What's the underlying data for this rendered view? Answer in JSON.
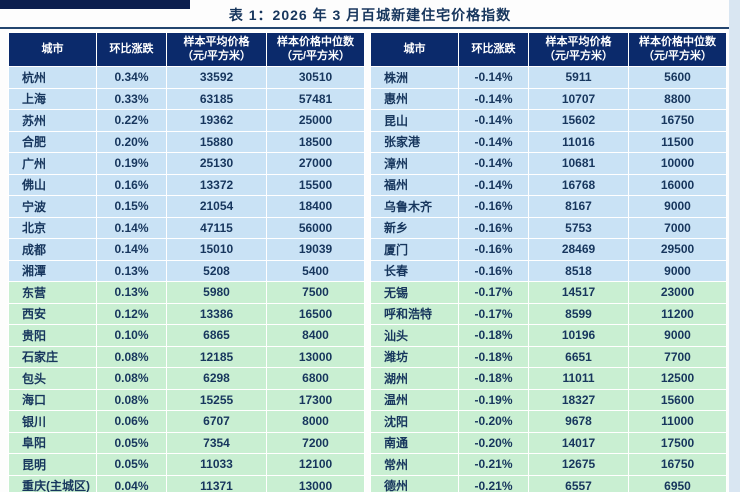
{
  "title": "表 1：2026 年 3 月百城新建住宅价格指数",
  "headers": [
    {
      "line1": "城市",
      "line2": ""
    },
    {
      "line1": "环比涨跌",
      "line2": ""
    },
    {
      "line1": "样本平均价格",
      "line2": "（元/平方米）"
    },
    {
      "line1": "样本价格中位数",
      "line2": "（元/平方米）"
    }
  ],
  "tables": [
    {
      "id": "left",
      "rows": [
        [
          "杭州",
          "0.34%",
          "33592",
          "30510"
        ],
        [
          "上海",
          "0.33%",
          "63185",
          "57481"
        ],
        [
          "苏州",
          "0.22%",
          "19362",
          "25000"
        ],
        [
          "合肥",
          "0.20%",
          "15880",
          "18500"
        ],
        [
          "广州",
          "0.19%",
          "25130",
          "27000"
        ],
        [
          "佛山",
          "0.16%",
          "13372",
          "15500"
        ],
        [
          "宁波",
          "0.15%",
          "21054",
          "18400"
        ],
        [
          "北京",
          "0.14%",
          "47115",
          "56000"
        ],
        [
          "成都",
          "0.14%",
          "15010",
          "19039"
        ],
        [
          "湘潭",
          "0.13%",
          "5208",
          "5400"
        ],
        [
          "东营",
          "0.13%",
          "5980",
          "7500"
        ],
        [
          "西安",
          "0.12%",
          "13386",
          "16500"
        ],
        [
          "贵阳",
          "0.10%",
          "6865",
          "8400"
        ],
        [
          "石家庄",
          "0.08%",
          "12185",
          "13000"
        ],
        [
          "包头",
          "0.08%",
          "6298",
          "6800"
        ],
        [
          "海口",
          "0.08%",
          "15255",
          "17300"
        ],
        [
          "银川",
          "0.06%",
          "6707",
          "8000"
        ],
        [
          "阜阳",
          "0.05%",
          "7354",
          "7200"
        ],
        [
          "昆明",
          "0.05%",
          "11033",
          "12100"
        ],
        [
          "重庆(主城区)",
          "0.04%",
          "11371",
          "13000"
        ]
      ]
    },
    {
      "id": "right",
      "rows": [
        [
          "株洲",
          "-0.14%",
          "5911",
          "5600"
        ],
        [
          "惠州",
          "-0.14%",
          "10707",
          "8800"
        ],
        [
          "昆山",
          "-0.14%",
          "15602",
          "16750"
        ],
        [
          "张家港",
          "-0.14%",
          "11016",
          "11500"
        ],
        [
          "漳州",
          "-0.14%",
          "10681",
          "10000"
        ],
        [
          "福州",
          "-0.14%",
          "16768",
          "16000"
        ],
        [
          "乌鲁木齐",
          "-0.16%",
          "8167",
          "9000"
        ],
        [
          "新乡",
          "-0.16%",
          "5753",
          "7000"
        ],
        [
          "厦门",
          "-0.16%",
          "28469",
          "29500"
        ],
        [
          "长春",
          "-0.16%",
          "8518",
          "9000"
        ],
        [
          "无锡",
          "-0.17%",
          "14517",
          "23000"
        ],
        [
          "呼和浩特",
          "-0.17%",
          "8599",
          "11200"
        ],
        [
          "汕头",
          "-0.18%",
          "10196",
          "9000"
        ],
        [
          "潍坊",
          "-0.18%",
          "6651",
          "7700"
        ],
        [
          "湖州",
          "-0.18%",
          "11011",
          "12500"
        ],
        [
          "温州",
          "-0.19%",
          "18327",
          "15600"
        ],
        [
          "沈阳",
          "-0.20%",
          "9678",
          "11000"
        ],
        [
          "南通",
          "-0.20%",
          "14017",
          "17500"
        ],
        [
          "常州",
          "-0.21%",
          "12675",
          "16750"
        ],
        [
          "德州",
          "-0.21%",
          "6557",
          "6950"
        ]
      ]
    }
  ],
  "style": {
    "header_bg": "#0b2a6b",
    "row_blue": "#c9e2f5",
    "row_green": "#c9efd2",
    "text_color": "#17365d",
    "accent_rule": "#23456f",
    "blue_group_rows": 10
  }
}
